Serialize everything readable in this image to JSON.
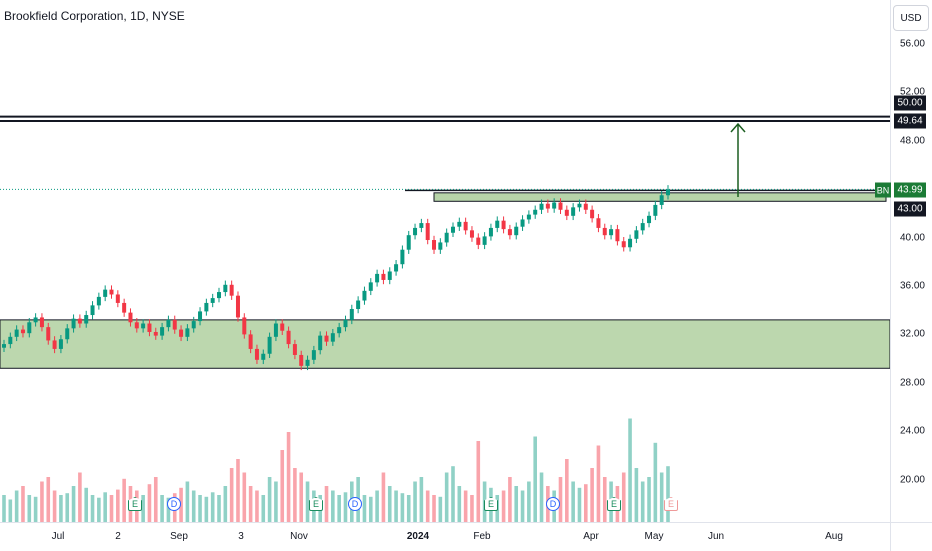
{
  "header": {
    "title": "Brookfield Corporation, 1D, NYSE",
    "currency": "USD"
  },
  "price_axis": {
    "ticks": [
      "56.00",
      "52.00",
      "48.00",
      "40.00",
      "36.00",
      "32.00",
      "28.00",
      "24.00",
      "20.00"
    ],
    "labels": {
      "resistance_top": "50.00",
      "resistance_bottom": "49.64",
      "last_price": "43.99",
      "support": "43.00"
    },
    "symbol_tag": "BN"
  },
  "time_axis": {
    "ticks": [
      {
        "label": "Jul",
        "bold": false
      },
      {
        "label": "2",
        "bold": false
      },
      {
        "label": "Sep",
        "bold": false
      },
      {
        "label": "3",
        "bold": false
      },
      {
        "label": "Nov",
        "bold": false
      },
      {
        "label": "2024",
        "bold": true
      },
      {
        "label": "Feb",
        "bold": false
      },
      {
        "label": "Apr",
        "bold": false
      },
      {
        "label": "May",
        "bold": false
      },
      {
        "label": "Jun",
        "bold": false
      },
      {
        "label": "Aug",
        "bold": false
      }
    ]
  },
  "events": [
    {
      "type": "E",
      "kind": "earnings"
    },
    {
      "type": "D",
      "kind": "dividend"
    },
    {
      "type": "E",
      "kind": "earnings"
    },
    {
      "type": "D",
      "kind": "dividend"
    },
    {
      "type": "E",
      "kind": "earnings"
    },
    {
      "type": "D",
      "kind": "dividend"
    },
    {
      "type": "E",
      "kind": "earnings"
    },
    {
      "type": "D",
      "kind": "dividend"
    },
    {
      "type": "E",
      "kind": "earnings-upcoming"
    }
  ],
  "colors": {
    "up": "#089981",
    "down": "#f23645",
    "zone": "#a5c993",
    "line": "#131722",
    "arrow": "#1b5e20"
  },
  "chart_data": {
    "type": "candlestick",
    "title": "Brookfield Corporation, 1D, NYSE",
    "ylim": [
      17,
      58
    ],
    "close_series": [
      31.2,
      31.8,
      32.4,
      32.1,
      33.0,
      33.4,
      32.6,
      31.5,
      30.8,
      31.6,
      32.5,
      33.3,
      32.9,
      33.6,
      34.4,
      35.1,
      35.7,
      35.3,
      34.6,
      33.8,
      33.0,
      32.5,
      32.9,
      32.2,
      31.9,
      32.6,
      33.2,
      32.4,
      31.8,
      32.5,
      33.1,
      33.9,
      34.6,
      35.0,
      35.5,
      36.1,
      35.2,
      33.4,
      32.0,
      30.8,
      29.9,
      30.4,
      31.8,
      32.9,
      32.3,
      31.2,
      30.3,
      29.4,
      29.9,
      30.7,
      31.9,
      31.4,
      32.1,
      32.6,
      33.2,
      34.1,
      34.8,
      35.6,
      36.3,
      37.0,
      36.5,
      37.2,
      37.8,
      39.0,
      40.2,
      40.8,
      41.2,
      39.8,
      39.0,
      39.6,
      40.4,
      40.9,
      41.3,
      40.6,
      40.0,
      39.4,
      40.1,
      40.8,
      41.4,
      40.7,
      40.2,
      40.9,
      41.5,
      41.9,
      42.3,
      42.8,
      42.4,
      42.9,
      42.3,
      41.8,
      42.5,
      42.8,
      42.3,
      41.6,
      40.8,
      40.2,
      40.7,
      39.7,
      39.2,
      39.9,
      40.6,
      41.2,
      41.8,
      42.7,
      43.5,
      43.99
    ],
    "volume_relative": [
      0.3,
      0.25,
      0.35,
      0.4,
      0.3,
      0.28,
      0.45,
      0.5,
      0.35,
      0.3,
      0.32,
      0.4,
      0.55,
      0.38,
      0.3,
      0.27,
      0.33,
      0.3,
      0.36,
      0.48,
      0.4,
      0.35,
      0.3,
      0.42,
      0.5,
      0.3,
      0.27,
      0.32,
      0.38,
      0.45,
      0.35,
      0.3,
      0.28,
      0.33,
      0.3,
      0.4,
      0.6,
      0.7,
      0.55,
      0.4,
      0.35,
      0.3,
      0.5,
      0.45,
      0.8,
      1.0,
      0.6,
      0.55,
      0.45,
      0.35,
      0.3,
      0.4,
      0.35,
      0.3,
      0.33,
      0.45,
      0.5,
      0.3,
      0.28,
      0.35,
      0.55,
      0.4,
      0.35,
      0.32,
      0.3,
      0.45,
      0.5,
      0.35,
      0.3,
      0.28,
      0.55,
      0.62,
      0.4,
      0.35,
      0.3,
      0.9,
      0.45,
      0.38,
      0.3,
      0.35,
      0.5,
      0.4,
      0.35,
      0.45,
      0.95,
      0.55,
      0.4,
      0.35,
      0.5,
      0.7,
      0.45,
      0.38,
      0.42,
      0.6,
      0.85,
      0.5,
      0.45,
      0.4,
      0.55,
      1.15,
      0.6,
      0.45,
      0.5,
      0.88,
      0.55,
      0.62
    ]
  }
}
